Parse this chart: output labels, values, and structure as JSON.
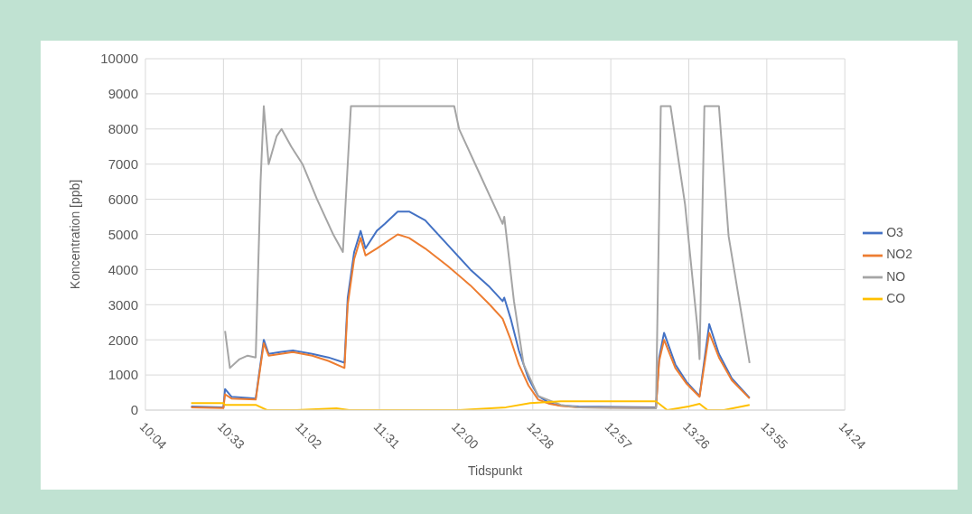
{
  "chart_data": {
    "type": "line",
    "xlabel": "Tidspunkt",
    "ylabel": "Koncentration [ppb]",
    "xlim": [
      10.0667,
      14.4
    ],
    "xticks": [
      {
        "value": 10.0667,
        "label": "10:04"
      },
      {
        "value": 10.55,
        "label": "10:33"
      },
      {
        "value": 11.0333,
        "label": "11:02"
      },
      {
        "value": 11.5167,
        "label": "11:31"
      },
      {
        "value": 12,
        "label": "12:00"
      },
      {
        "value": 12.4667,
        "label": "12:28"
      },
      {
        "value": 12.95,
        "label": "12:57"
      },
      {
        "value": 13.4333,
        "label": "13:26"
      },
      {
        "value": 13.9167,
        "label": "13:55"
      },
      {
        "value": 14.4,
        "label": "14:24"
      }
    ],
    "ylim": [
      0,
      10000
    ],
    "yticks": [
      0,
      1000,
      2000,
      3000,
      4000,
      5000,
      6000,
      7000,
      8000,
      9000,
      10000
    ],
    "grid": true,
    "legend": "right",
    "marker": "none",
    "line_style": "solid",
    "series": [
      {
        "name": "O3",
        "color": "#4472c4",
        "x": [
          10.35,
          10.55,
          10.56,
          10.6,
          10.7,
          10.75,
          10.8,
          10.83,
          10.9,
          10.98,
          11.1,
          11.2,
          11.3,
          11.32,
          11.36,
          11.4,
          11.43,
          11.5,
          11.55,
          11.63,
          11.7,
          11.8,
          11.94,
          12.08,
          12.2,
          12.28,
          12.29,
          12.33,
          12.38,
          12.44,
          12.5,
          12.57,
          12.64,
          12.75,
          13.0,
          13.23,
          13.25,
          13.28,
          13.35,
          13.42,
          13.5,
          13.56,
          13.62,
          13.7,
          13.81
        ],
        "values": [
          100,
          80,
          600,
          380,
          350,
          330,
          2000,
          1600,
          1650,
          1700,
          1600,
          1500,
          1350,
          3200,
          4500,
          5100,
          4600,
          5100,
          5300,
          5650,
          5650,
          5400,
          4700,
          4000,
          3500,
          3100,
          3200,
          2600,
          1700,
          900,
          400,
          200,
          130,
          100,
          90,
          80,
          1500,
          2200,
          1300,
          800,
          400,
          2450,
          1600,
          900,
          350
        ]
      },
      {
        "name": "NO2",
        "color": "#ed7d31",
        "x": [
          10.35,
          10.55,
          10.56,
          10.6,
          10.75,
          10.8,
          10.83,
          10.98,
          11.1,
          11.2,
          11.3,
          11.32,
          11.36,
          11.4,
          11.43,
          11.5,
          11.63,
          11.7,
          11.8,
          11.94,
          12.08,
          12.2,
          12.28,
          12.33,
          12.38,
          12.44,
          12.5,
          12.57,
          12.64,
          12.75,
          13.23,
          13.25,
          13.28,
          13.35,
          13.42,
          13.5,
          13.56,
          13.62,
          13.7,
          13.81
        ],
        "values": [
          80,
          60,
          450,
          330,
          300,
          1900,
          1550,
          1650,
          1550,
          1400,
          1200,
          3000,
          4300,
          4900,
          4400,
          4600,
          5000,
          4900,
          4600,
          4100,
          3550,
          3000,
          2600,
          2000,
          1300,
          700,
          300,
          180,
          120,
          80,
          60,
          1400,
          2000,
          1200,
          750,
          380,
          2200,
          1500,
          850,
          330
        ]
      },
      {
        "name": "NO",
        "color": "#a5a5a5",
        "x": [
          10.56,
          10.59,
          10.65,
          10.7,
          10.75,
          10.78,
          10.8,
          10.83,
          10.88,
          10.91,
          10.97,
          11.04,
          11.13,
          11.23,
          11.29,
          11.34,
          11.98,
          12.01,
          12.13,
          12.28,
          12.29,
          12.35,
          12.41,
          12.5,
          12.64,
          12.75,
          13.23,
          13.26,
          13.32,
          13.41,
          13.49,
          13.5,
          13.53,
          13.62,
          13.68,
          13.81
        ],
        "values": [
          2250,
          1200,
          1450,
          1550,
          1500,
          6500,
          8650,
          7000,
          7800,
          8000,
          7500,
          7000,
          6000,
          5000,
          4500,
          8650,
          8650,
          8000,
          6800,
          5300,
          5500,
          3100,
          1300,
          400,
          150,
          80,
          50,
          8650,
          8650,
          5860,
          2200,
          1450,
          8650,
          8650,
          4950,
          1340
        ]
      },
      {
        "name": "CO",
        "color": "#ffc000",
        "x": [
          10.35,
          10.55,
          10.56,
          10.75,
          10.82,
          11.0,
          11.25,
          11.33,
          12.0,
          12.3,
          12.45,
          12.64,
          13.23,
          13.3,
          13.43,
          13.5,
          13.55,
          13.65,
          13.81
        ],
        "values": [
          200,
          200,
          150,
          150,
          0,
          0,
          50,
          0,
          0,
          80,
          200,
          250,
          250,
          0,
          100,
          180,
          0,
          0,
          150
        ]
      }
    ]
  }
}
